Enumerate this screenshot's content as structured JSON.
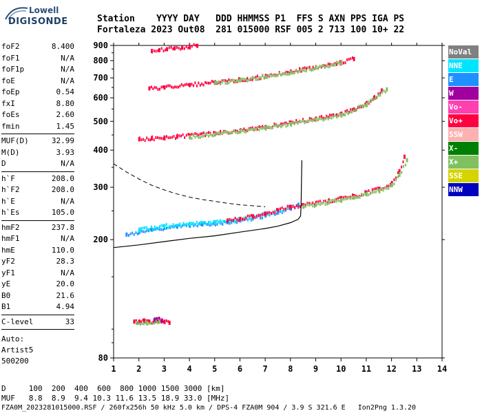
{
  "logo": {
    "top": "Lowell",
    "bottom": "DIGISONDE"
  },
  "header": {
    "line1": "Station    YYYY DAY   DDD HHMMSS P1  FFS S AXN PPS IGA PS",
    "line2": "Fortaleza 2023 Out08  281 015000 RSF 005 2 713 100 10+ 22"
  },
  "params_group1": [
    {
      "name": "foF2",
      "value": "8.400"
    },
    {
      "name": "foF1",
      "value": "N/A"
    },
    {
      "name": "foF1p",
      "value": "N/A"
    },
    {
      "name": "foE",
      "value": "N/A"
    },
    {
      "name": "foEp",
      "value": "0.54"
    },
    {
      "name": "fxI",
      "value": "8.80"
    },
    {
      "name": "foEs",
      "value": "2.60"
    },
    {
      "name": "fmin",
      "value": "1.45"
    }
  ],
  "params_group2": [
    {
      "name": "MUF(D)",
      "value": "32.99"
    },
    {
      "name": "M(D)",
      "value": "3.93"
    },
    {
      "name": "D",
      "value": "N/A"
    }
  ],
  "params_group3": [
    {
      "name": "h`F",
      "value": "208.0"
    },
    {
      "name": "h`F2",
      "value": "208.0"
    },
    {
      "name": "h`E",
      "value": "N/A"
    },
    {
      "name": "h`Es",
      "value": "105.0"
    }
  ],
  "params_group4": [
    {
      "name": "hmF2",
      "value": "237.8"
    },
    {
      "name": "hmF1",
      "value": "N/A"
    },
    {
      "name": "hmE",
      "value": "110.0"
    },
    {
      "name": "yF2",
      "value": "28.3"
    },
    {
      "name": "yF1",
      "value": "N/A"
    },
    {
      "name": "yE",
      "value": "20.0"
    },
    {
      "name": "B0",
      "value": "21.6"
    },
    {
      "name": "B1",
      "value": "4.94"
    }
  ],
  "params_group5": [
    {
      "name": "C-level",
      "value": "33"
    }
  ],
  "auto": {
    "line1": "Auto:",
    "line2": "Artist5",
    "line3": "500200"
  },
  "legend": [
    {
      "label": "NoVal",
      "color": "#808080"
    },
    {
      "label": "NNE",
      "color": "#00e5ff"
    },
    {
      "label": "E",
      "color": "#1e90ff"
    },
    {
      "label": "W",
      "color": "#a000a0"
    },
    {
      "label": "Vo-",
      "color": "#ff40b0"
    },
    {
      "label": "Vo+",
      "color": "#ff0040"
    },
    {
      "label": "SSW",
      "color": "#ffb0b0"
    },
    {
      "label": "X-",
      "color": "#008000"
    },
    {
      "label": "X+",
      "color": "#80c060"
    },
    {
      "label": "SSE",
      "color": "#d4d400"
    },
    {
      "label": "NNW",
      "color": "#0000c0"
    }
  ],
  "footer": {
    "line1": "D     100  200  400  600  800 1000 1500 3000 [km]",
    "line2": "MUF   8.8  8.9  9.4 10.3 11.6 13.5 18.9 33.0 [MHz]",
    "line3": "FZA0M_2023281015000.RSF / 260fx256h 50 kHz 5.0 km / DPS-4 FZA0M 904 / 3.9 S 321.6 E   Ion2Png 1.3.20"
  },
  "chart_data": {
    "type": "scatter",
    "xlim": [
      1,
      14
    ],
    "ylim": [
      80,
      900
    ],
    "y_scale": "log",
    "xticks": [
      1,
      2,
      3,
      4,
      5,
      6,
      7,
      8,
      9,
      10,
      11,
      12,
      13,
      14
    ],
    "yticks": [
      80,
      200,
      300,
      400,
      500,
      600,
      700,
      800,
      900
    ],
    "grid": false,
    "legend_position": "right",
    "traces": [
      {
        "name": "Es",
        "color": "#ff0040",
        "x": [
          1.8,
          2.0,
          2.2,
          2.4,
          2.6,
          2.8,
          3.0,
          3.2
        ],
        "y": [
          106,
          106,
          107,
          106,
          106,
          107,
          106,
          105
        ]
      },
      {
        "name": "Es",
        "color": "#a000a0",
        "x": [
          2.6,
          2.7,
          2.9
        ],
        "y": [
          107,
          108,
          107
        ]
      },
      {
        "name": "Es",
        "color": "#80c060",
        "x": [
          1.9,
          2.3,
          2.8
        ],
        "y": [
          105,
          105,
          106
        ]
      },
      {
        "name": "F2-o",
        "color": "#1e90ff",
        "x": [
          1.5,
          2.0,
          2.5,
          3.0,
          3.5,
          4.0,
          4.5,
          5.0,
          5.5,
          6.0,
          6.5,
          7.0,
          7.5,
          8.0,
          8.3
        ],
        "y": [
          208,
          212,
          216,
          219,
          221,
          223,
          225,
          227,
          229,
          232,
          236,
          241,
          247,
          255,
          262
        ]
      },
      {
        "name": "F2-o",
        "color": "#00e5ff",
        "x": [
          2.0,
          3.0,
          4.0,
          5.0,
          6.0,
          6.5,
          7.0,
          7.5,
          8.0
        ],
        "y": [
          215,
          222,
          226,
          229,
          234,
          238,
          244,
          250,
          258
        ]
      },
      {
        "name": "F2-o",
        "color": "#ff0040",
        "x": [
          5.5,
          6.0,
          6.5,
          7.0,
          7.5,
          8.0,
          8.5,
          9.0,
          9.5,
          10.0,
          10.5,
          11.0,
          11.5,
          12.0,
          12.3,
          12.5
        ],
        "y": [
          232,
          235,
          239,
          245,
          251,
          258,
          261,
          265,
          270,
          275,
          280,
          288,
          296,
          310,
          340,
          380
        ]
      },
      {
        "name": "F2-x",
        "color": "#80c060",
        "x": [
          8.5,
          9.0,
          9.5,
          10.0,
          10.5,
          11.0,
          11.5,
          12.0,
          12.3,
          12.6
        ],
        "y": [
          258,
          262,
          267,
          272,
          277,
          284,
          292,
          305,
          330,
          370
        ]
      },
      {
        "name": "2F",
        "color": "#ff0040",
        "x": [
          2.0,
          2.5,
          3.0,
          3.5,
          4.0,
          5.0,
          6.0,
          7.0,
          8.0,
          9.0,
          10.0,
          10.5,
          11.0,
          11.3,
          11.6
        ],
        "y": [
          435,
          438,
          441,
          444,
          448,
          455,
          465,
          478,
          495,
          510,
          530,
          548,
          575,
          600,
          635
        ]
      },
      {
        "name": "2F",
        "color": "#80c060",
        "x": [
          4.0,
          5.0,
          6.0,
          7.0,
          8.0,
          9.0,
          10.0,
          11.0,
          11.8
        ],
        "y": [
          442,
          452,
          462,
          475,
          490,
          506,
          525,
          570,
          640
        ]
      },
      {
        "name": "3F",
        "color": "#ff0040",
        "x": [
          2.4,
          3.0,
          4.0,
          5.0,
          6.0,
          7.0,
          8.0,
          9.0,
          10.0,
          10.5
        ],
        "y": [
          645,
          650,
          662,
          675,
          690,
          708,
          735,
          760,
          790,
          810
        ]
      },
      {
        "name": "3F",
        "color": "#80c060",
        "x": [
          5.0,
          6.0,
          7.0,
          8.0,
          9.0,
          10.0
        ],
        "y": [
          672,
          688,
          705,
          730,
          758,
          788
        ]
      },
      {
        "name": "4F",
        "color": "#ff0040",
        "x": [
          2.5,
          2.8,
          3.1,
          3.4,
          3.7,
          4.0,
          4.3
        ],
        "y": [
          862,
          868,
          874,
          880,
          886,
          892,
          897
        ]
      }
    ],
    "profile": {
      "x": [
        1.0,
        2.0,
        3.0,
        4.0,
        5.0,
        6.0,
        7.0,
        7.5,
        8.0,
        8.3,
        8.4,
        8.42
      ],
      "y": [
        188,
        192,
        197,
        202,
        206,
        212,
        218,
        222,
        228,
        234,
        240,
        260
      ]
    },
    "dashed": {
      "x": [
        1.0,
        1.5,
        2.0,
        2.5,
        3.0,
        3.5,
        4.0,
        4.5,
        5.0,
        5.5,
        6.0,
        6.5,
        7.0
      ],
      "y": [
        360,
        338,
        320,
        305,
        294,
        285,
        278,
        273,
        269,
        265,
        262,
        260,
        258
      ]
    }
  }
}
